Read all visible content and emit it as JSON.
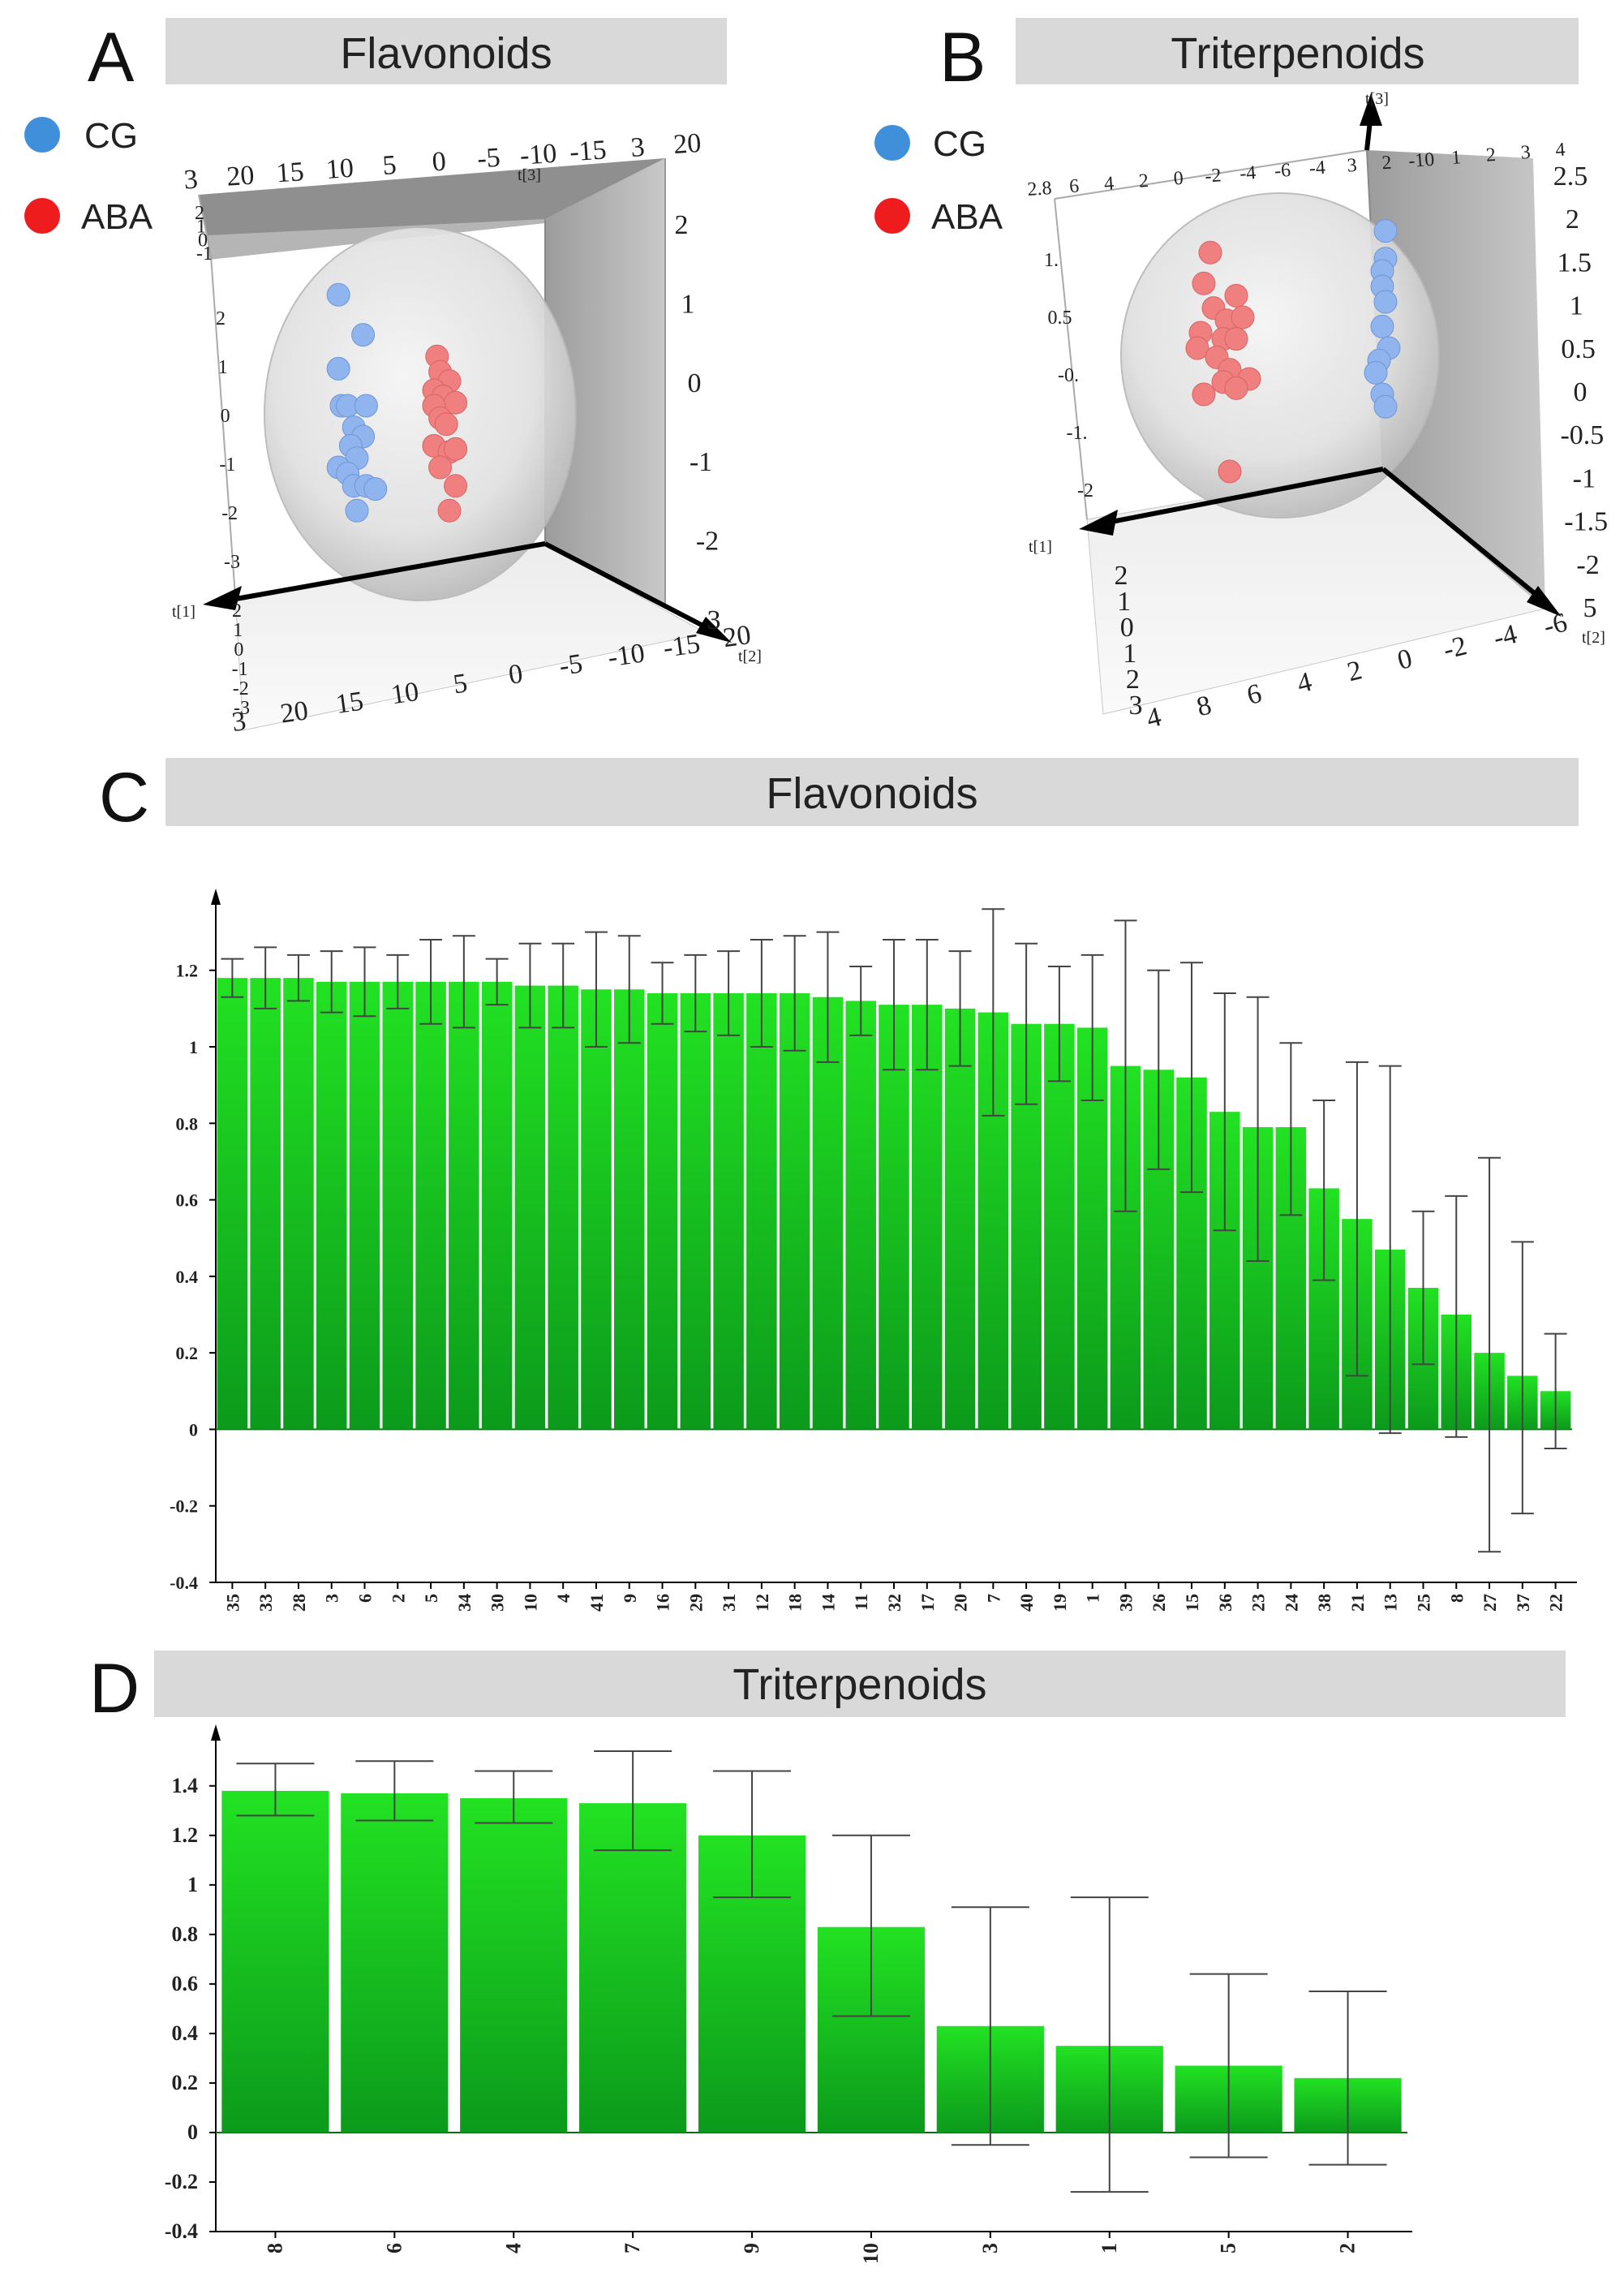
{
  "panels": {
    "A": {
      "letter": "A",
      "banner": "Flavonoids"
    },
    "B": {
      "letter": "B",
      "banner": "Triterpenoids"
    },
    "C": {
      "letter": "C",
      "banner": "Flavonoids"
    },
    "D": {
      "letter": "D",
      "banner": "Triterpenoids"
    }
  },
  "legend": [
    {
      "label": "CG",
      "color": "#3f8fdb"
    },
    {
      "label": "ABA",
      "color": "#ee1c1c"
    }
  ],
  "colors": {
    "point_cg": "#8fb4ee",
    "point_aba": "#f07f7f",
    "bar": "#18d818",
    "bar_dark": "#0c9a1c",
    "banner": "#d9d9d9"
  },
  "chart_data": [
    {
      "id": "A",
      "type": "scatter",
      "title": "Flavonoids",
      "axes": [
        "t[1]",
        "t[2]",
        "t[3]"
      ],
      "labels_top": [
        "3",
        "20",
        "15",
        "10",
        "5",
        "0",
        "-5",
        "-10",
        "-15",
        "3",
        "20"
      ],
      "labels_right": [
        "2",
        "1",
        "0",
        "-1",
        "-2",
        "3"
      ],
      "labels_left": [
        "2",
        "1",
        "0",
        "-1",
        "-2",
        "-3"
      ],
      "labels_left_top": [
        "2",
        "1",
        "0",
        "-1"
      ],
      "labels_bottom": [
        "3",
        "20",
        "15",
        "10",
        "5",
        "0",
        "-5",
        "-10",
        "-15",
        "20"
      ],
      "labels_bottom_left": [
        "2",
        "1",
        "0",
        "-1",
        "-2",
        "-3"
      ],
      "series": [
        {
          "name": "CG",
          "x": [
            0.24,
            0.32,
            0.24,
            0.25,
            0.27,
            0.33,
            0.29,
            0.32,
            0.28,
            0.3,
            0.24,
            0.27,
            0.29,
            0.33,
            0.36,
            0.3
          ],
          "y": [
            0.86,
            0.73,
            0.62,
            0.5,
            0.5,
            0.5,
            0.43,
            0.4,
            0.37,
            0.33,
            0.3,
            0.28,
            0.24,
            0.24,
            0.23,
            0.16
          ]
        },
        {
          "name": "ABA",
          "x": [
            0.56,
            0.57,
            0.6,
            0.55,
            0.58,
            0.62,
            0.55,
            0.57,
            0.59,
            0.55,
            0.6,
            0.62,
            0.57,
            0.62,
            0.6
          ],
          "y": [
            0.66,
            0.61,
            0.58,
            0.55,
            0.53,
            0.51,
            0.5,
            0.46,
            0.44,
            0.37,
            0.35,
            0.36,
            0.3,
            0.24,
            0.16
          ]
        }
      ]
    },
    {
      "id": "B",
      "type": "scatter",
      "title": "Triterpenoids",
      "axes": [
        "t[1]",
        "t[2]",
        "t[3]"
      ],
      "labels_top": [
        "2.8",
        "6",
        "4",
        "2",
        "0",
        "-2",
        "-4",
        "-6",
        "-4",
        "3",
        "2",
        "-10",
        "1",
        "2",
        "3",
        "4"
      ],
      "labels_right": [
        "2.5",
        "2",
        "1.5",
        "1",
        "0.5",
        "0",
        "-0.5",
        "-1",
        "-1.5",
        "-2",
        "5"
      ],
      "labels_left": [
        "1.",
        "0.5",
        "-0.",
        "-1.",
        "-2"
      ],
      "labels_bottom": [
        "4",
        "8",
        "6",
        "4",
        "2",
        "0",
        "-2",
        "-4",
        "-6"
      ],
      "labels_bottom_left": [
        "2",
        "1",
        "0",
        "1",
        "2",
        "3"
      ],
      "series": [
        {
          "name": "CG",
          "x": [
            0.82,
            0.82,
            0.81,
            0.81,
            0.82,
            0.81,
            0.83,
            0.8,
            0.79,
            0.81,
            0.82
          ],
          "y": [
            0.93,
            0.84,
            0.8,
            0.75,
            0.7,
            0.62,
            0.55,
            0.51,
            0.47,
            0.4,
            0.36
          ]
        },
        {
          "name": "ABA",
          "x": [
            0.28,
            0.26,
            0.36,
            0.29,
            0.33,
            0.38,
            0.25,
            0.32,
            0.36,
            0.24,
            0.3,
            0.34,
            0.4,
            0.32,
            0.26,
            0.36,
            0.34
          ],
          "y": [
            0.86,
            0.76,
            0.72,
            0.68,
            0.64,
            0.65,
            0.6,
            0.58,
            0.58,
            0.55,
            0.52,
            0.48,
            0.45,
            0.44,
            0.4,
            0.42,
            0.15
          ]
        }
      ]
    },
    {
      "id": "C",
      "type": "bar",
      "title": "Flavonoids",
      "xlabel": "",
      "ylabel": "",
      "categories": [
        "35",
        "33",
        "28",
        "3",
        "6",
        "2",
        "5",
        "34",
        "30",
        "10",
        "4",
        "41",
        "9",
        "16",
        "29",
        "31",
        "12",
        "18",
        "14",
        "11",
        "32",
        "17",
        "20",
        "7",
        "40",
        "19",
        "1",
        "39",
        "26",
        "15",
        "36",
        "23",
        "24",
        "38",
        "21",
        "13",
        "25",
        "8",
        "27",
        "37",
        "22"
      ],
      "values": [
        1.18,
        1.18,
        1.18,
        1.17,
        1.17,
        1.17,
        1.17,
        1.17,
        1.17,
        1.16,
        1.16,
        1.15,
        1.15,
        1.14,
        1.14,
        1.14,
        1.14,
        1.14,
        1.13,
        1.12,
        1.11,
        1.11,
        1.1,
        1.09,
        1.06,
        1.06,
        1.05,
        0.95,
        0.94,
        0.92,
        0.83,
        0.79,
        0.79,
        0.63,
        0.55,
        0.47,
        0.37,
        0.3,
        0.2,
        0.14,
        0.1
      ],
      "error_upper": [
        1.23,
        1.26,
        1.24,
        1.25,
        1.26,
        1.24,
        1.28,
        1.29,
        1.23,
        1.27,
        1.27,
        1.3,
        1.29,
        1.22,
        1.24,
        1.25,
        1.28,
        1.29,
        1.3,
        1.21,
        1.28,
        1.28,
        1.25,
        1.36,
        1.27,
        1.21,
        1.24,
        1.33,
        1.2,
        1.22,
        1.14,
        1.13,
        1.01,
        0.86,
        0.96,
        0.95,
        0.57,
        0.61,
        0.71,
        0.49,
        0.25
      ],
      "error_lower": [
        1.13,
        1.1,
        1.12,
        1.09,
        1.08,
        1.1,
        1.06,
        1.05,
        1.11,
        1.05,
        1.05,
        1.0,
        1.01,
        1.06,
        1.04,
        1.03,
        1.0,
        0.99,
        0.96,
        1.03,
        0.94,
        0.94,
        0.95,
        0.82,
        0.85,
        0.91,
        0.86,
        0.57,
        0.68,
        0.62,
        0.52,
        0.44,
        0.56,
        0.39,
        0.14,
        -0.01,
        0.17,
        -0.02,
        -0.32,
        -0.22,
        -0.05
      ],
      "ylim": [
        -0.4,
        1.35
      ],
      "yticks": [
        "-0.4",
        "-0.2",
        "0",
        "0.2",
        "0.4",
        "0.6",
        "0.8",
        "1",
        "1.2"
      ]
    },
    {
      "id": "D",
      "type": "bar",
      "title": "Triterpenoids",
      "xlabel": "",
      "ylabel": "",
      "categories": [
        "8",
        "6",
        "4",
        "7",
        "9",
        "10",
        "3",
        "1",
        "5",
        "2"
      ],
      "values": [
        1.38,
        1.37,
        1.35,
        1.33,
        1.2,
        0.83,
        0.43,
        0.35,
        0.27,
        0.22
      ],
      "error_upper": [
        1.49,
        1.5,
        1.46,
        1.54,
        1.46,
        1.2,
        0.91,
        0.95,
        0.64,
        0.57
      ],
      "error_lower": [
        1.28,
        1.26,
        1.25,
        1.14,
        0.95,
        0.47,
        -0.05,
        -0.24,
        -0.1,
        -0.13
      ],
      "ylim": [
        -0.4,
        1.55
      ],
      "yticks": [
        "-0.4",
        "-0.2",
        "0",
        "0.2",
        "0.4",
        "0.6",
        "0.8",
        "1",
        "1.2",
        "1.4"
      ]
    }
  ]
}
